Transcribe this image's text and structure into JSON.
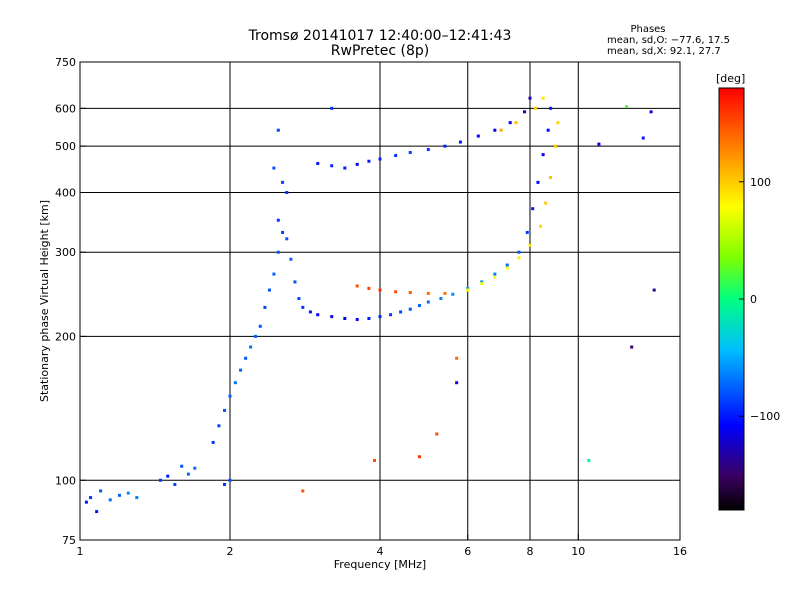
{
  "title_line1": "Tromsø 20141017 12:40:00–12:41:43",
  "title_line2": "RwPretec (8p)",
  "phases": {
    "heading": "Phases",
    "line_o": "mean, sd,O: −77.6, 17.5",
    "line_x": "mean, sd,X:  92.1, 27.7"
  },
  "colorbar": {
    "unit": "[deg]",
    "min": -180,
    "max": 180,
    "tick_values": [
      100,
      0,
      -100
    ],
    "tick_labels": [
      "100",
      "0",
      "−100"
    ]
  },
  "chart_data": {
    "type": "scatter",
    "xlabel": "Frequency [MHz]",
    "ylabel": "Stationary phase Virtual Height [km]",
    "xscale": "log",
    "yscale": "log",
    "xlim": [
      1,
      16
    ],
    "ylim": [
      75,
      750
    ],
    "xticks": [
      1,
      2,
      4,
      6,
      8,
      10,
      16
    ],
    "xtick_labels": [
      "1",
      "2",
      "4",
      "6",
      "8",
      "10",
      "16"
    ],
    "yticks": [
      75,
      100,
      200,
      300,
      400,
      500,
      600,
      750
    ],
    "ytick_labels": [
      "75",
      "100",
      "200",
      "300",
      "400",
      "500",
      "600",
      "750"
    ],
    "xgrid": [
      2,
      4,
      6,
      8,
      10
    ],
    "ygrid": [
      100,
      200,
      300,
      400,
      500,
      600
    ],
    "series": [
      {
        "points": [
          [
            1.03,
            90,
            -100
          ],
          [
            1.05,
            92,
            -90
          ],
          [
            1.08,
            86,
            -100
          ],
          [
            1.1,
            95,
            -80
          ],
          [
            1.15,
            91,
            -70
          ],
          [
            1.2,
            93,
            -75
          ],
          [
            1.25,
            94,
            -60
          ],
          [
            1.3,
            92,
            -65
          ],
          [
            1.45,
            100,
            -90
          ],
          [
            1.5,
            102,
            -100
          ],
          [
            1.55,
            98,
            -85
          ],
          [
            1.6,
            107,
            -80
          ],
          [
            1.65,
            103,
            -75
          ],
          [
            1.7,
            106,
            -70
          ],
          [
            1.95,
            98,
            -90
          ],
          [
            2.0,
            100,
            -80
          ],
          [
            1.85,
            120,
            -90
          ],
          [
            1.9,
            130,
            -85
          ],
          [
            1.95,
            140,
            -80
          ],
          [
            2.0,
            150,
            -75
          ],
          [
            2.05,
            160,
            -70
          ],
          [
            2.1,
            170,
            -75
          ],
          [
            2.15,
            180,
            -80
          ],
          [
            2.2,
            190,
            -70
          ],
          [
            2.25,
            200,
            -75
          ],
          [
            2.3,
            210,
            -80
          ],
          [
            2.35,
            230,
            -85
          ],
          [
            2.4,
            250,
            -80
          ],
          [
            2.45,
            270,
            -75
          ],
          [
            2.5,
            300,
            -80
          ],
          [
            2.55,
            330,
            -85
          ],
          [
            2.5,
            350,
            -90
          ],
          [
            2.6,
            320,
            -80
          ],
          [
            2.65,
            290,
            -75
          ],
          [
            2.7,
            260,
            -80
          ],
          [
            2.75,
            240,
            -85
          ],
          [
            2.8,
            230,
            -90
          ],
          [
            2.9,
            225,
            -100
          ],
          [
            3.0,
            222,
            -110
          ],
          [
            3.2,
            220,
            -115
          ],
          [
            3.4,
            218,
            -110
          ],
          [
            3.6,
            217,
            -105
          ],
          [
            3.8,
            218,
            -100
          ],
          [
            4.0,
            220,
            -95
          ],
          [
            4.2,
            222,
            -90
          ],
          [
            4.4,
            225,
            -85
          ],
          [
            4.6,
            228,
            -80
          ],
          [
            4.8,
            232,
            -75
          ],
          [
            5.0,
            236,
            -70
          ],
          [
            5.3,
            240,
            -65
          ],
          [
            5.6,
            245,
            -60
          ],
          [
            6.0,
            252,
            -55
          ],
          [
            6.4,
            260,
            -60
          ],
          [
            6.8,
            270,
            -65
          ],
          [
            7.2,
            282,
            -70
          ],
          [
            7.6,
            300,
            -80
          ],
          [
            7.9,
            330,
            -90
          ],
          [
            8.1,
            370,
            -100
          ],
          [
            8.3,
            420,
            -105
          ],
          [
            8.5,
            480,
            -110
          ],
          [
            8.7,
            540,
            -105
          ],
          [
            8.8,
            600,
            -100
          ],
          [
            2.45,
            450,
            -80
          ],
          [
            2.55,
            420,
            -85
          ],
          [
            2.6,
            400,
            -90
          ],
          [
            2.5,
            540,
            -85
          ],
          [
            3.0,
            460,
            -100
          ],
          [
            3.2,
            455,
            -95
          ],
          [
            3.4,
            450,
            -100
          ],
          [
            3.6,
            458,
            -105
          ],
          [
            3.8,
            465,
            -100
          ],
          [
            4.0,
            470,
            -95
          ],
          [
            4.3,
            478,
            -90
          ],
          [
            4.6,
            485,
            -85
          ],
          [
            5.0,
            492,
            -90
          ],
          [
            5.4,
            500,
            -95
          ],
          [
            5.8,
            510,
            -100
          ],
          [
            6.3,
            525,
            -105
          ],
          [
            6.8,
            540,
            -110
          ],
          [
            7.3,
            560,
            -115
          ],
          [
            7.8,
            590,
            -120
          ],
          [
            8.0,
            630,
            -125
          ],
          [
            3.6,
            255,
            150
          ],
          [
            3.8,
            252,
            155
          ],
          [
            4.0,
            250,
            160
          ],
          [
            4.3,
            248,
            150
          ],
          [
            4.6,
            247,
            145
          ],
          [
            5.0,
            246,
            140
          ],
          [
            5.4,
            246,
            135
          ],
          [
            6.0,
            250,
            80
          ],
          [
            6.4,
            258,
            70
          ],
          [
            6.8,
            266,
            75
          ],
          [
            7.2,
            278,
            80
          ],
          [
            7.6,
            292,
            85
          ],
          [
            8.0,
            310,
            90
          ],
          [
            8.4,
            340,
            95
          ],
          [
            8.6,
            380,
            100
          ],
          [
            8.8,
            430,
            105
          ],
          [
            9.0,
            500,
            100
          ],
          [
            9.1,
            560,
            95
          ],
          [
            7.0,
            540,
            110
          ],
          [
            7.5,
            560,
            105
          ],
          [
            8.2,
            600,
            95
          ],
          [
            8.5,
            630,
            90
          ],
          [
            12.5,
            605,
            20
          ],
          [
            13.5,
            520,
            -100
          ],
          [
            14.0,
            590,
            -120
          ],
          [
            11.0,
            505,
            -110
          ],
          [
            10.5,
            110,
            -10
          ],
          [
            12.8,
            190,
            -150
          ],
          [
            14.2,
            250,
            -140
          ],
          [
            3.9,
            110,
            150
          ],
          [
            4.8,
            112,
            160
          ],
          [
            5.2,
            125,
            150
          ],
          [
            5.7,
            160,
            -120
          ],
          [
            5.7,
            180,
            140
          ],
          [
            2.8,
            95,
            150
          ],
          [
            3.2,
            600,
            -90
          ]
        ]
      }
    ]
  }
}
